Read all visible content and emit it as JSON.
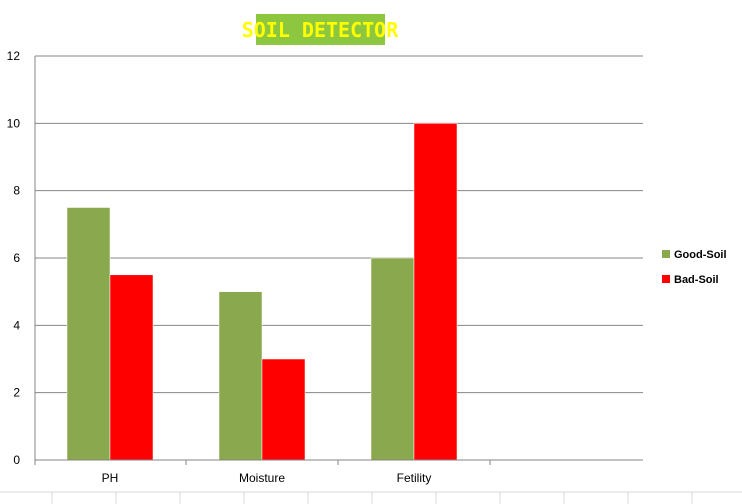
{
  "chart_data": {
    "type": "bar",
    "title": "SOIL DETECTOR",
    "xlabel": "",
    "ylabel": "",
    "categories": [
      "PH",
      "Moisture",
      "Fetility"
    ],
    "series": [
      {
        "name": "Good-Soil",
        "values": [
          7.5,
          5,
          6
        ],
        "color": "#8aa84e"
      },
      {
        "name": "Bad-Soil",
        "values": [
          5.5,
          3,
          10
        ],
        "color": "#ff0000"
      }
    ],
    "ylim": [
      0,
      12
    ],
    "yticks": [
      0,
      2,
      4,
      6,
      8,
      10,
      12
    ],
    "grid": true,
    "legend_position": "right",
    "title_style": {
      "background": "#8dc63f",
      "text_color": "#ffff00"
    }
  }
}
